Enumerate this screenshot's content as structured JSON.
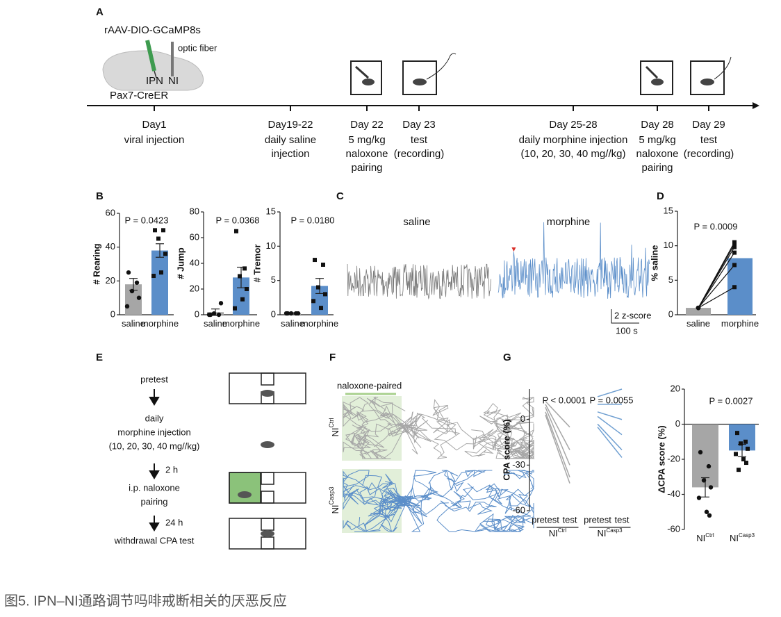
{
  "caption": "图5. IPN–NI通路调节吗啡戒断相关的厌恶反应",
  "panel_labels": [
    "A",
    "B",
    "C",
    "D",
    "E",
    "F",
    "G"
  ],
  "schematic_a": {
    "virus": "rAAV-DIO-GCaMP8s",
    "fiber": "optic fiber",
    "ipn": "IPN",
    "ni": "NI",
    "mouse": "Pax7-CreER"
  },
  "timeline": [
    {
      "day": "Day1",
      "lines": [
        "viral injection"
      ]
    },
    {
      "day": "Day19-22",
      "lines": [
        "daily saline",
        "injection"
      ]
    },
    {
      "day": "Day 22",
      "lines": [
        "5 mg/kg",
        "naloxone",
        "pairing"
      ]
    },
    {
      "day": "Day 23",
      "lines": [
        "test",
        "(recording)"
      ]
    },
    {
      "day": "Day 25-28",
      "lines": [
        "daily morphine injection",
        "(10, 20, 30, 40 mg//kg)"
      ]
    },
    {
      "day": "Day 28",
      "lines": [
        "5 mg/kg",
        "naloxone",
        "pairing"
      ]
    },
    {
      "day": "Day 29",
      "lines": [
        "test",
        "(recording)"
      ]
    }
  ],
  "trace_c": {
    "labels": [
      "saline",
      "morphine"
    ],
    "scale_y": "2 z-score",
    "scale_x": "100 s"
  },
  "flow_e": {
    "steps": [
      [
        "pretest"
      ],
      [
        "daily",
        "morphine injection",
        "(10, 20, 30, 40 mg//kg)"
      ],
      [
        "i.p. naloxone",
        "pairing"
      ],
      [
        "withdrawal CPA test"
      ]
    ],
    "intervals": [
      "2 h",
      "24 h"
    ]
  },
  "panel_f": {
    "header": "naloxone-paired",
    "rows": [
      {
        "base": "NI",
        "sup": "Ctrl"
      },
      {
        "base": "NI",
        "sup": "Casp3"
      }
    ]
  },
  "chart_data": [
    {
      "type": "bar_dots",
      "ylabel": "# Rearing",
      "annotations": [
        "P = 0.0423"
      ],
      "categories": [
        "saline",
        "morphine"
      ],
      "values": [
        18,
        38
      ],
      "errors": [
        3.5,
        4
      ],
      "colors": [
        "#a6a6a6",
        "#5b8ec9"
      ],
      "markers": [
        "circle",
        "square"
      ],
      "points": [
        [
          25,
          19,
          14,
          10,
          5
        ],
        [
          50,
          50,
          45,
          36,
          23,
          25
        ]
      ],
      "ylim": [
        0,
        60
      ],
      "yticks": [
        0,
        20,
        40,
        60
      ]
    },
    {
      "type": "bar_dots",
      "ylabel": "# Jump",
      "annotations": [
        "P = 0.0368"
      ],
      "categories": [
        "saline",
        "morphine"
      ],
      "values": [
        2,
        29
      ],
      "errors": [
        2.5,
        8
      ],
      "colors": [
        "#a6a6a6",
        "#5b8ec9"
      ],
      "markers": [
        "circle",
        "square"
      ],
      "points": [
        [
          0,
          0,
          1,
          9,
          0
        ],
        [
          65,
          36,
          30,
          20,
          5,
          12
        ]
      ],
      "ylim": [
        0,
        80
      ],
      "yticks": [
        0,
        20,
        40,
        60,
        80
      ]
    },
    {
      "type": "bar_dots",
      "ylabel": "# Tremor",
      "annotations": [
        "P = 0.0180"
      ],
      "categories": [
        "saline",
        "morphine"
      ],
      "values": [
        0.2,
        4.2
      ],
      "errors": [
        0.1,
        1.1
      ],
      "colors": [
        "#a6a6a6",
        "#5b8ec9"
      ],
      "markers": [
        "circle",
        "square"
      ],
      "points": [
        [
          0.2,
          0.2,
          0.2,
          0.2,
          0.2
        ],
        [
          8,
          7.3,
          4,
          3,
          2,
          1
        ]
      ],
      "ylim": [
        0,
        15
      ],
      "yticks": [
        0,
        5,
        10,
        15
      ]
    },
    {
      "type": "paired_bar",
      "ylabel": "% saline",
      "annotations": [
        "P = 0.0009"
      ],
      "categories": [
        "saline",
        "morphine"
      ],
      "values": [
        1,
        8.2
      ],
      "colors": [
        "#a6a6a6",
        "#5b8ec9"
      ],
      "points": [
        [
          1,
          1,
          1,
          1,
          1,
          1
        ],
        [
          10.5,
          10.2,
          9.8,
          9,
          7.2,
          4
        ]
      ],
      "ylim": [
        0,
        15
      ],
      "yticks": [
        0,
        5,
        10,
        15
      ]
    },
    {
      "type": "paired_lines",
      "ylabel": "CPA score (%)",
      "annotations": [
        "P < 0.0001",
        "P = 0.0055"
      ],
      "categories": [
        "pretest",
        "test",
        "pretest",
        "test"
      ],
      "group_labels": [
        {
          "base": "NI",
          "sup": "Ctrl"
        },
        {
          "base": "NI",
          "sup": "Casp3"
        }
      ],
      "series": [
        {
          "color": "#a6a6a6",
          "pretest": [
            12,
            10,
            8,
            5,
            3
          ],
          "test": [
            -5,
            -20,
            -30,
            -38,
            -42
          ]
        },
        {
          "color": "#6f9fd1",
          "pretest": [
            15,
            10,
            5,
            2,
            -3,
            -5
          ],
          "test": [
            20,
            10,
            0,
            -10,
            -20,
            -25
          ]
        }
      ],
      "ylim": [
        -60,
        20
      ],
      "yticks": [
        -60,
        -30,
        0
      ]
    },
    {
      "type": "bar_dots",
      "ylabel": "ΔCPA score (%)",
      "annotations": [
        "P = 0.0027"
      ],
      "categories": [
        "NI",
        "NI"
      ],
      "category_superscripts": [
        "Ctrl",
        "Casp3"
      ],
      "values": [
        -36,
        -15
      ],
      "errors": [
        5.5,
        3.5
      ],
      "colors": [
        "#a6a6a6",
        "#5b8ec9"
      ],
      "markers": [
        "circle",
        "square"
      ],
      "points": [
        [
          -16,
          -24,
          -32,
          -36,
          -42,
          -50,
          -52
        ],
        [
          -5,
          -10,
          -11,
          -14,
          -17,
          -20,
          -22,
          -26
        ]
      ],
      "ylim": [
        -60,
        20
      ],
      "yticks": [
        -60,
        -40,
        -20,
        0,
        20
      ]
    }
  ]
}
